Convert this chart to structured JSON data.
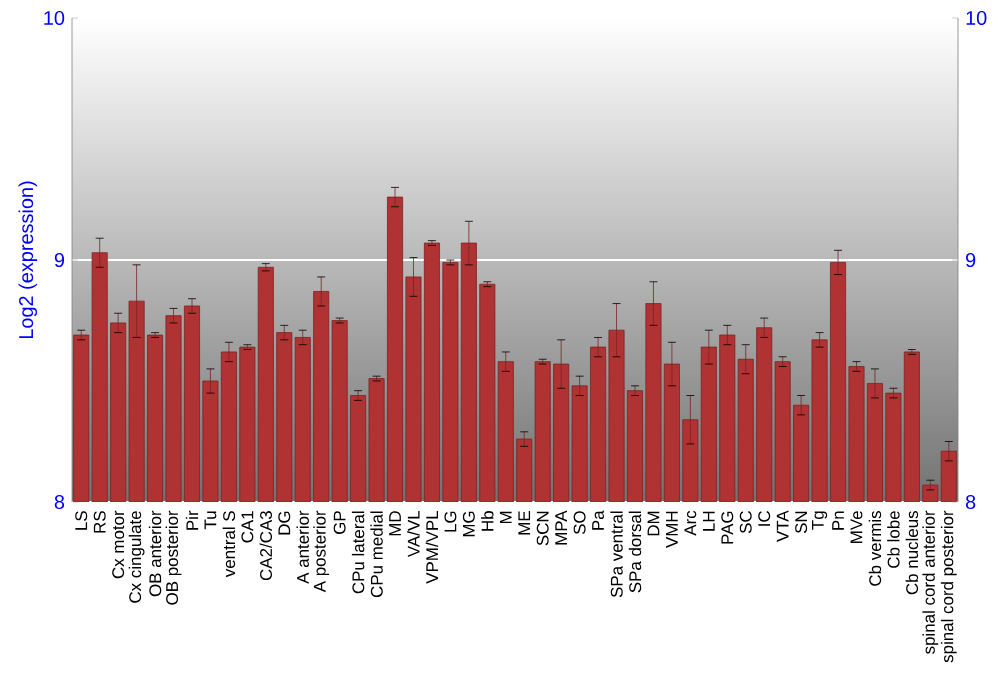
{
  "chart_data": {
    "type": "bar",
    "ylabel": "Log2 (expression)",
    "categories": [
      "LS",
      "RS",
      "Cx motor",
      "Cx cingulate",
      "OB anterior",
      "OB posterior",
      "Pir",
      "Tu",
      "ventral S",
      "CA1",
      "CA2/CA3",
      "DG",
      "A anterior",
      "A posterior",
      "GP",
      "CPu lateral",
      "CPu medial",
      "MD",
      "VA/VL",
      "VPM/VPL",
      "LG",
      "MG",
      "Hb",
      "M",
      "ME",
      "SCN",
      "MPA",
      "SO",
      "Pa",
      "SPa ventral",
      "SPa dorsal",
      "DM",
      "VMH",
      "Arc",
      "LH",
      "PAG",
      "SC",
      "IC",
      "VTA",
      "SN",
      "Tg",
      "Pn",
      "MVe",
      "Cb vermis",
      "Cb lobe",
      "Cb nucleus",
      "spinal cord anterior",
      "spinal cord posterior"
    ],
    "values": [
      8.69,
      9.03,
      8.74,
      8.83,
      8.69,
      8.77,
      8.81,
      8.5,
      8.62,
      8.64,
      8.97,
      8.7,
      8.68,
      8.87,
      8.75,
      8.44,
      8.51,
      9.26,
      8.93,
      9.07,
      8.99,
      9.07,
      8.9,
      8.58,
      8.26,
      8.58,
      8.57,
      8.48,
      8.64,
      8.71,
      8.46,
      8.82,
      8.57,
      8.34,
      8.64,
      8.69,
      8.59,
      8.72,
      8.58,
      8.4,
      8.67,
      8.99,
      8.56,
      8.49,
      8.45,
      8.62,
      8.07,
      8.21
    ],
    "errors": [
      0.02,
      0.06,
      0.04,
      0.15,
      0.01,
      0.03,
      0.03,
      0.05,
      0.04,
      0.01,
      0.015,
      0.03,
      0.03,
      0.06,
      0.01,
      0.02,
      0.01,
      0.04,
      0.08,
      0.01,
      0.01,
      0.09,
      0.01,
      0.04,
      0.03,
      0.01,
      0.1,
      0.04,
      0.04,
      0.11,
      0.02,
      0.09,
      0.09,
      0.1,
      0.07,
      0.04,
      0.06,
      0.04,
      0.02,
      0.04,
      0.03,
      0.05,
      0.02,
      0.06,
      0.02,
      0.01,
      0.02,
      0.04
    ],
    "color": "#b03232",
    "ylim": [
      8,
      10
    ],
    "yticks": [
      8,
      9,
      10
    ],
    "y2lim": [
      8,
      10
    ],
    "y2ticks": [
      8,
      9,
      10
    ],
    "grid": "y"
  }
}
